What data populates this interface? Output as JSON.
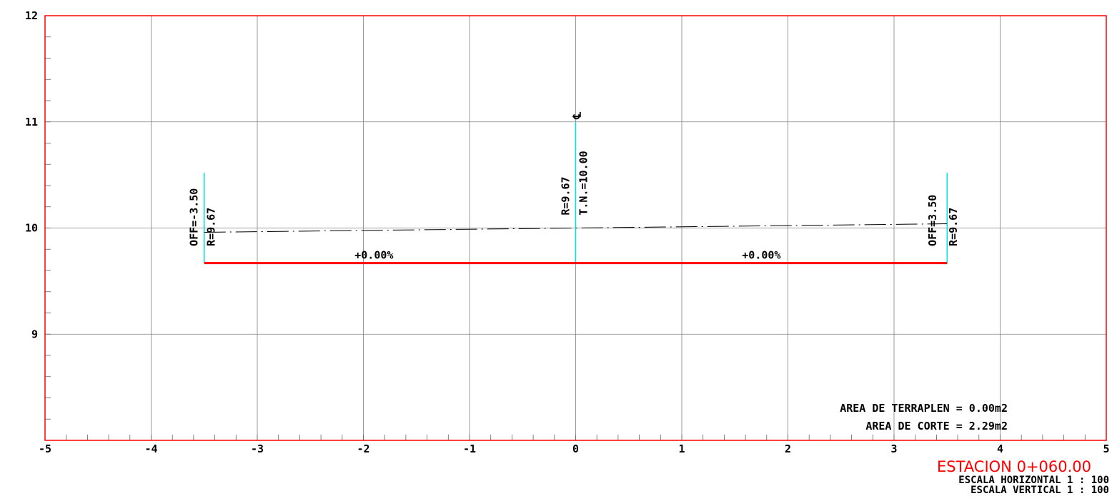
{
  "chart_data": {
    "type": "line",
    "xlim": [
      -5,
      5
    ],
    "ylim": [
      8,
      12
    ],
    "x_ticks": [
      "-5",
      "-4",
      "-3",
      "-2",
      "-1",
      "0",
      "1",
      "2",
      "3",
      "4",
      "5"
    ],
    "y_ticks": [
      "9",
      "10",
      "11",
      "12"
    ],
    "grid": true,
    "series": [
      {
        "style": "dash-dot",
        "color": "#000000",
        "x": [
          -3.5,
          0,
          3.5
        ],
        "y": [
          9.96,
          10.0,
          10.04
        ]
      },
      {
        "style": "solid",
        "color": "#ff0000",
        "x": [
          -3.5,
          0,
          3.5
        ],
        "y": [
          9.67,
          9.67,
          9.67
        ]
      }
    ],
    "verticals": [
      {
        "x": -3.5,
        "y_from": 9.67,
        "y_to": 10.52,
        "color": "#00e0e0"
      },
      {
        "x": 0,
        "y_from": 9.67,
        "y_to": 11.0,
        "color": "#00e0e0"
      },
      {
        "x": 3.5,
        "y_from": 9.67,
        "y_to": 10.52,
        "color": "#00e0e0"
      }
    ],
    "annotations": {
      "left_offset": "OFF=-3.50",
      "left_elev": "R=9.67",
      "center_elev": "R=9.67",
      "center_tn": "T.N.=10.00",
      "centerline_symbol": "℄",
      "right_offset": "OFF=3.50",
      "right_elev": "R=9.67",
      "left_slope": "+0.00%",
      "right_slope": "+0.00%"
    },
    "colors": {
      "frame": "#ff0000",
      "grid": "#808080",
      "subgrade": "#ff0000",
      "verticals": "#00e0e0"
    }
  },
  "areas": {
    "fill": "AREA DE TERRAPLEN = 0.00m2",
    "cut": "AREA DE CORTE = 2.29m2"
  },
  "footer": {
    "station": "ESTACION 0+060.00",
    "h_scale": "ESCALA HORIZONTAL 1 : 100",
    "v_scale": "ESCALA VERTICAL 1 : 100"
  }
}
